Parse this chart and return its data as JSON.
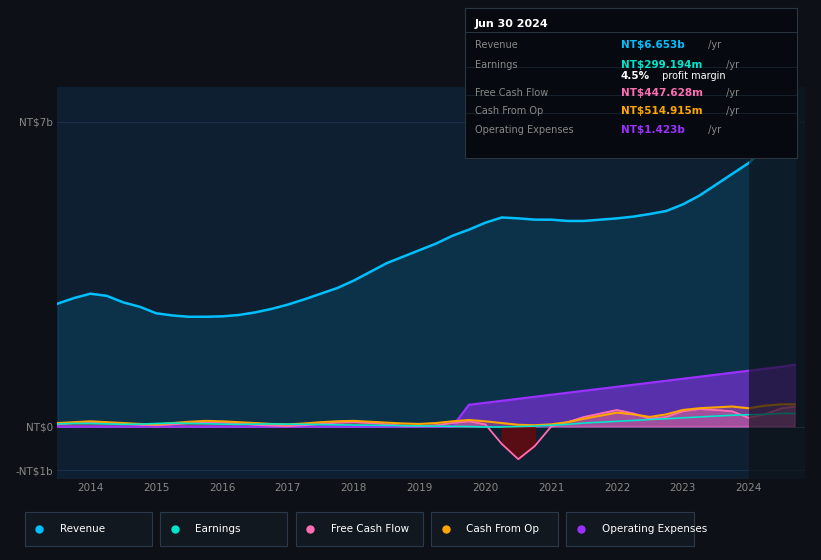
{
  "background_color": "#0d1117",
  "chart_bg_color": "#0d1f30",
  "title": "Jun 30 2024",
  "ylim": [
    -1.2,
    7.8
  ],
  "xlim": [
    2013.5,
    2024.85
  ],
  "xticks": [
    2014,
    2015,
    2016,
    2017,
    2018,
    2019,
    2020,
    2021,
    2022,
    2023,
    2024
  ],
  "ytick_vals": [
    -1.0,
    0.0,
    7.0
  ],
  "ytick_labels": [
    "-NT$1b",
    "NT$0",
    "NT$7b"
  ],
  "grid_color": "#1e3550",
  "colors": {
    "revenue": "#00bfff",
    "earnings": "#00e5cc",
    "free_cash_flow": "#ff6eb4",
    "cash_from_op": "#ffa500",
    "operating_expenses": "#9b30ff"
  },
  "legend_items": [
    {
      "label": "Revenue",
      "color": "#00bfff"
    },
    {
      "label": "Earnings",
      "color": "#00e5cc"
    },
    {
      "label": "Free Cash Flow",
      "color": "#ff6eb4"
    },
    {
      "label": "Cash From Op",
      "color": "#ffa500"
    },
    {
      "label": "Operating Expenses",
      "color": "#9b30ff"
    }
  ],
  "info_rows": [
    {
      "label": "Revenue",
      "value": "NT$6.653b",
      "value_color": "#00bfff"
    },
    {
      "label": "Earnings",
      "value": "NT$299.194m",
      "value_color": "#00e5cc"
    },
    {
      "label": "",
      "value": "4.5% profit margin",
      "value_color": "#ffffff"
    },
    {
      "label": "Free Cash Flow",
      "value": "NT$447.628m",
      "value_color": "#ff6eb4"
    },
    {
      "label": "Cash From Op",
      "value": "NT$514.915m",
      "value_color": "#ffa500"
    },
    {
      "label": "Operating Expenses",
      "value": "NT$1.423b",
      "value_color": "#9b30ff"
    }
  ]
}
